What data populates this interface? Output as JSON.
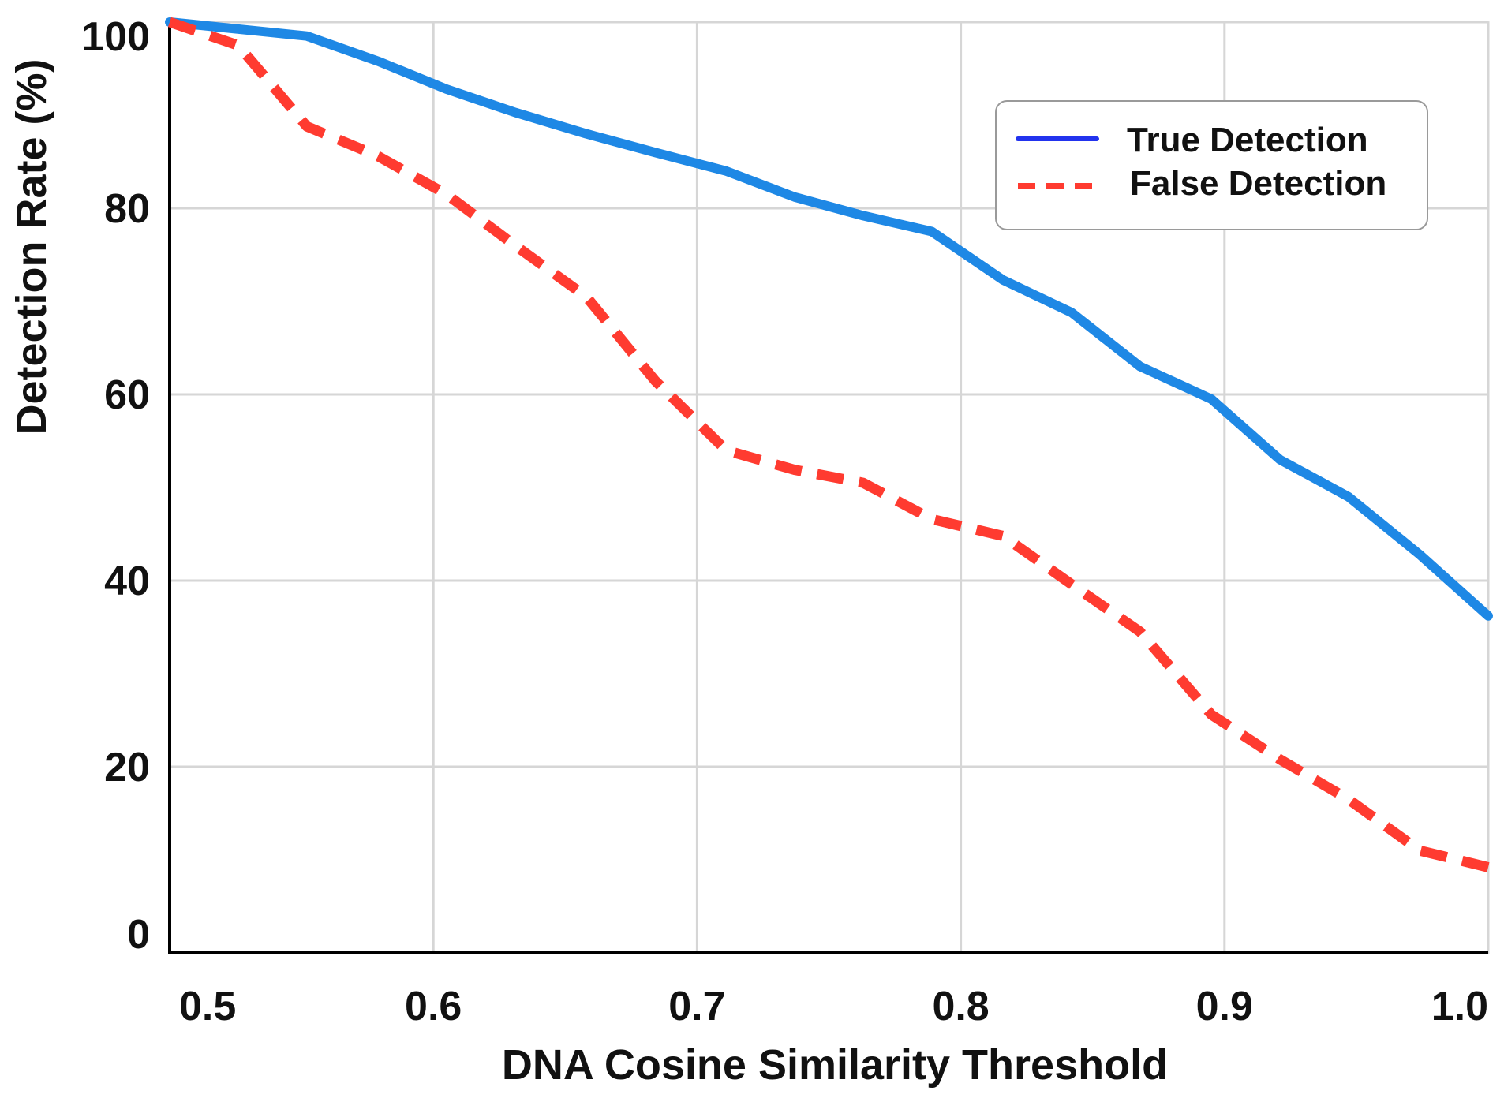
{
  "chart_data": {
    "type": "line",
    "title": "",
    "xlabel": "DNA Cosine Similarity Threshold",
    "ylabel": "Detection Rate (%)",
    "xlim": [
      0.5,
      1.0
    ],
    "ylim": [
      0,
      100
    ],
    "x_ticks": [
      0.5,
      0.6,
      0.7,
      0.8,
      0.9,
      1.0
    ],
    "x_tick_labels": [
      "0.5",
      "0.6",
      "0.7",
      "0.8",
      "0.9",
      "1.0"
    ],
    "y_ticks": [
      0,
      20,
      40,
      60,
      80,
      100
    ],
    "y_tick_labels": [
      "0",
      "20",
      "40",
      "60",
      "80",
      "100"
    ],
    "grid": true,
    "legend_position": "top-right",
    "series": [
      {
        "name": "True Detection",
        "color": "#1E88E5",
        "legend_color": "#2233EE",
        "style": "solid",
        "x": [
          0.5,
          0.552,
          0.579,
          0.605,
          0.631,
          0.658,
          0.684,
          0.711,
          0.737,
          0.763,
          0.789,
          0.816,
          0.842,
          0.868,
          0.895,
          0.921,
          0.947,
          0.974,
          1.0
        ],
        "values": [
          100,
          98.5,
          95.8,
          92.8,
          90.3,
          88.0,
          86.0,
          84.0,
          81.2,
          79.2,
          77.5,
          72.3,
          68.8,
          63.0,
          59.5,
          53.0,
          49.0,
          42.8,
          36.2
        ]
      },
      {
        "name": "False Detection",
        "color": "#FF3B30",
        "legend_color": "#FF3B30",
        "style": "dashed",
        "x": [
          0.5,
          0.526,
          0.552,
          0.579,
          0.605,
          0.631,
          0.658,
          0.684,
          0.711,
          0.737,
          0.763,
          0.789,
          0.816,
          0.842,
          0.868,
          0.895,
          0.921,
          0.947,
          0.974,
          1.0
        ],
        "values": [
          100,
          97.5,
          88.8,
          85.6,
          81.5,
          76.0,
          70.5,
          61.5,
          54.0,
          51.9,
          50.5,
          46.6,
          44.8,
          39.6,
          34.5,
          25.6,
          20.8,
          16.5,
          11.0,
          9.2
        ]
      }
    ]
  }
}
